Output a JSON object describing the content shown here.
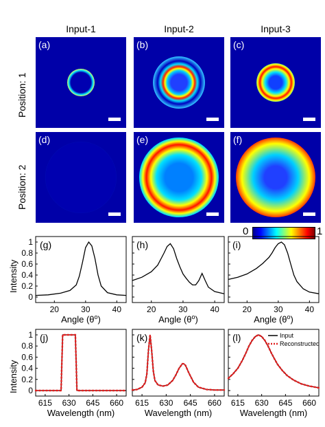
{
  "columns": [
    "Input-1",
    "Input-2",
    "Input-3"
  ],
  "rows": [
    "Position: 1",
    "Position: 2"
  ],
  "panel_tags": [
    "(a)",
    "(b)",
    "(c)",
    "(d)",
    "(e)",
    "(f)"
  ],
  "colorbar": {
    "min": "0",
    "max": "1"
  },
  "chart_data": [
    {
      "tag": "(g)",
      "type": "line",
      "xlim": [
        14,
        43
      ],
      "ylim": [
        0,
        1
      ],
      "x": [
        14,
        18,
        22,
        25,
        27,
        28,
        29,
        30,
        31,
        32,
        33,
        34,
        35,
        37,
        40,
        43
      ],
      "y": [
        0.03,
        0.04,
        0.07,
        0.12,
        0.22,
        0.38,
        0.63,
        0.9,
        1.0,
        0.93,
        0.7,
        0.4,
        0.2,
        0.08,
        0.04,
        0.03
      ]
    },
    {
      "tag": "(h)",
      "type": "line",
      "xlim": [
        14,
        43
      ],
      "ylim": [
        0,
        1
      ],
      "x": [
        14,
        17,
        20,
        22,
        24,
        25,
        26,
        27,
        28,
        29,
        30,
        31,
        32,
        33,
        34,
        35,
        36,
        37,
        38,
        40,
        43
      ],
      "y": [
        0.3,
        0.36,
        0.46,
        0.58,
        0.8,
        0.92,
        0.97,
        0.88,
        0.7,
        0.55,
        0.42,
        0.34,
        0.27,
        0.22,
        0.22,
        0.3,
        0.43,
        0.3,
        0.18,
        0.1,
        0.06
      ]
    },
    {
      "tag": "(i)",
      "type": "line",
      "xlim": [
        14,
        43
      ],
      "ylim": [
        0,
        1
      ],
      "x": [
        14,
        17,
        20,
        23,
        25,
        27,
        28,
        29,
        30,
        31,
        32,
        33,
        34,
        35,
        36,
        38,
        40,
        43
      ],
      "y": [
        0.32,
        0.36,
        0.42,
        0.52,
        0.61,
        0.72,
        0.8,
        0.9,
        0.97,
        1.0,
        0.95,
        0.8,
        0.6,
        0.4,
        0.28,
        0.15,
        0.09,
        0.06
      ]
    },
    {
      "tag": "(j)",
      "type": "line",
      "xlim": [
        609,
        666
      ],
      "ylim": [
        0,
        1
      ],
      "x": [
        609,
        625,
        625.5,
        626,
        634,
        634.5,
        635,
        666
      ],
      "y": [
        0,
        0,
        0.5,
        1,
        1,
        0.5,
        0,
        0
      ]
    },
    {
      "tag": "(k)",
      "type": "line",
      "xlim": [
        609,
        666
      ],
      "ylim": [
        0,
        1
      ],
      "x": [
        609,
        612,
        615,
        617,
        618,
        619,
        620,
        621,
        622,
        623,
        625,
        628,
        631,
        634,
        636,
        638,
        640,
        641,
        642,
        644,
        647,
        650,
        655,
        660,
        666
      ],
      "y": [
        0.01,
        0.02,
        0.06,
        0.14,
        0.3,
        0.72,
        1.0,
        0.72,
        0.35,
        0.18,
        0.1,
        0.08,
        0.1,
        0.18,
        0.28,
        0.4,
        0.48,
        0.48,
        0.45,
        0.32,
        0.15,
        0.06,
        0.02,
        0.01,
        0.01
      ]
    },
    {
      "tag": "(l)",
      "type": "line",
      "xlim": [
        609,
        666
      ],
      "ylim": [
        0,
        1
      ],
      "x": [
        609,
        612,
        615,
        618,
        620,
        622,
        624,
        626,
        628,
        630,
        632,
        634,
        636,
        638,
        640,
        643,
        646,
        650,
        655,
        660,
        666
      ],
      "y": [
        0.22,
        0.3,
        0.4,
        0.55,
        0.67,
        0.8,
        0.9,
        0.97,
        1.0,
        0.97,
        0.9,
        0.8,
        0.68,
        0.57,
        0.47,
        0.36,
        0.27,
        0.19,
        0.12,
        0.08,
        0.05
      ],
      "legend": [
        "Input",
        "Reconstructed"
      ]
    }
  ],
  "angle_axis": {
    "ticks": [
      "20",
      "30",
      "40"
    ],
    "xlabel": "Angle (θ",
    "xlabel_sup": "o",
    "xlabel_end": ")"
  },
  "wave_axis": {
    "ticks": [
      "615",
      "630",
      "645",
      "660"
    ],
    "xlabel": "Wavelength (nm)"
  },
  "yaxis": {
    "ylabel": "Intensity",
    "ticks": [
      "0",
      "0.2",
      "0.4",
      "0.6",
      "0.8",
      "1"
    ]
  }
}
